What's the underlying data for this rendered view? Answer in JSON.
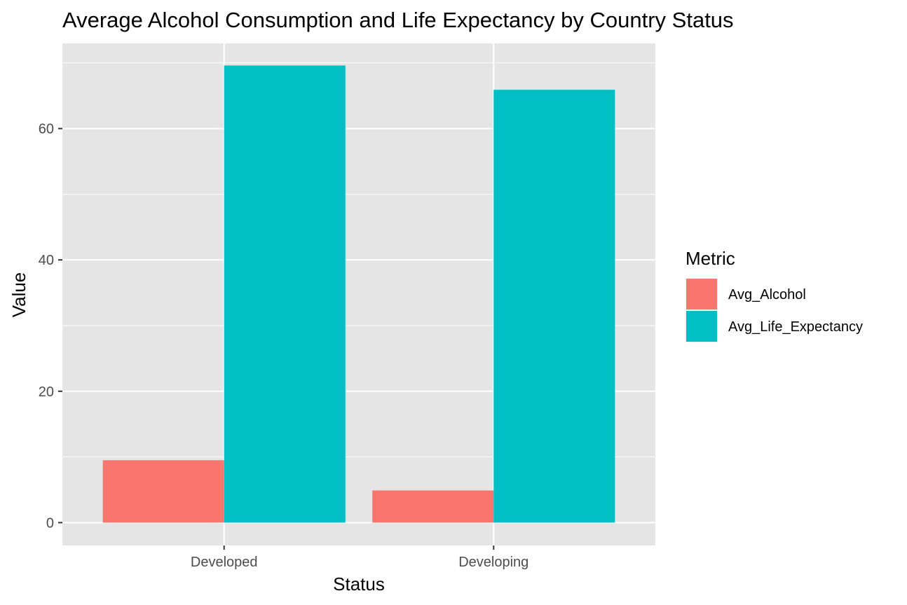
{
  "chart_data": {
    "type": "bar",
    "title": "Average Alcohol Consumption and Life Expectancy by Country Status",
    "xlabel": "Status",
    "ylabel": "Value",
    "categories": [
      "Developed",
      "Developing"
    ],
    "series": [
      {
        "name": "Avg_Alcohol",
        "values": [
          9.5,
          4.9
        ],
        "color": "#F8766D"
      },
      {
        "name": "Avg_Life_Expectancy",
        "values": [
          69.6,
          65.9
        ],
        "color": "#00BFC4"
      }
    ],
    "yticks": [
      0,
      20,
      40,
      60
    ],
    "ytick_labels": [
      "0",
      "20",
      "40",
      "60"
    ],
    "ylim": [
      -3.48,
      72.96
    ],
    "grid": true,
    "legend": {
      "title": "Metric",
      "position": "right"
    },
    "panel_background": "#E5E5E5",
    "gridline_color": "#FFFFFF"
  }
}
